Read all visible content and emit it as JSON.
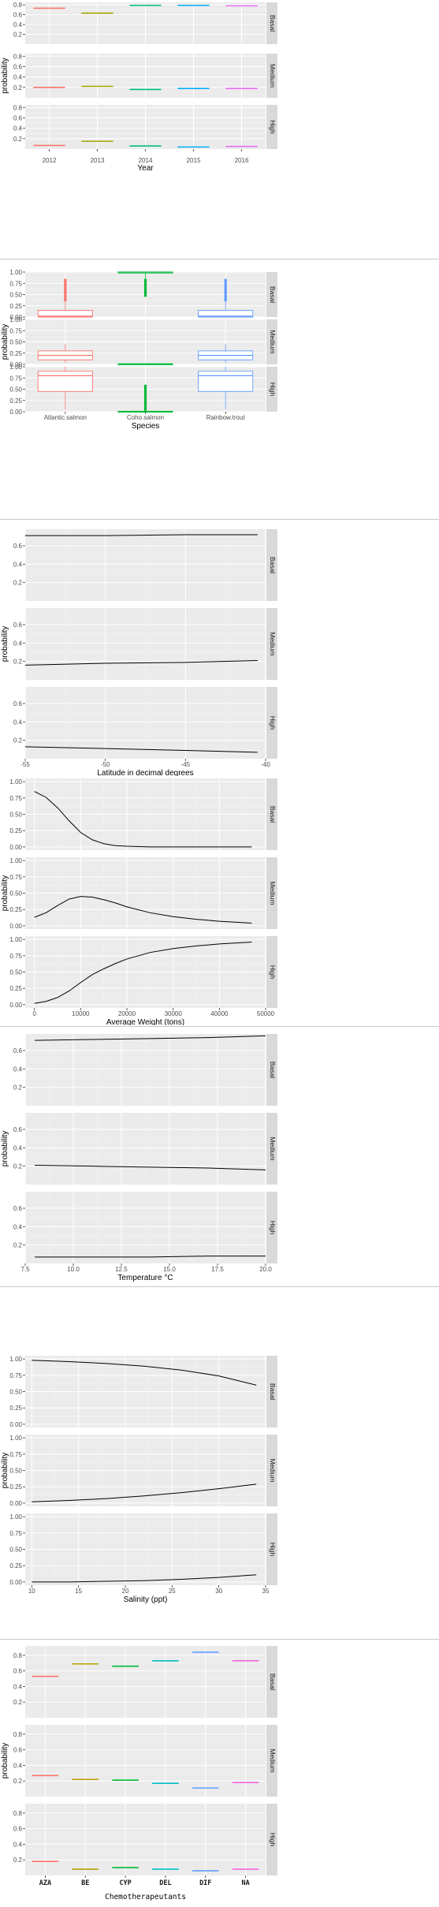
{
  "figures": [
    {
      "id": "year",
      "chart_data": {
        "type": "facet-bar",
        "xlabel": "Year",
        "ylabel": "probability",
        "categories": [
          "2012",
          "2013",
          "2014",
          "2015",
          "2016"
        ],
        "colors": [
          "#F8766D",
          "#A3A500",
          "#00BF7D",
          "#00B0F6",
          "#E76BF3"
        ],
        "facets": [
          {
            "name": "Basal",
            "values": [
              0.73,
              0.63,
              0.79,
              0.79,
              0.78
            ]
          },
          {
            "name": "Medium",
            "values": [
              0.2,
              0.22,
              0.16,
              0.18,
              0.18
            ]
          },
          {
            "name": "High",
            "values": [
              0.07,
              0.15,
              0.06,
              0.04,
              0.05
            ]
          }
        ],
        "ylim": [
          0,
          0.85
        ],
        "yticks": [
          0.2,
          0.4,
          0.6,
          0.8
        ],
        "grid": true
      }
    },
    {
      "id": "species",
      "chart_data": {
        "type": "facet-box",
        "xlabel": "Species",
        "ylabel": "probability",
        "categories": [
          "Atlantic.salmon",
          "Coho.salmon",
          "Rainbow.trout"
        ],
        "colors": [
          "#F8766D",
          "#00BA38",
          "#619CFF"
        ],
        "facets": [
          {
            "name": "Basal",
            "boxes": [
              {
                "min": 0.0,
                "q1": 0.0,
                "median": 0.02,
                "q3": 0.15,
                "max": 0.35,
                "outlier_max": 0.85
              },
              {
                "min": 0.85,
                "q1": 0.99,
                "median": 1.0,
                "q3": 1.0,
                "max": 1.0,
                "outlier_min": 0.45
              },
              {
                "min": 0.0,
                "q1": 0.0,
                "median": 0.02,
                "q3": 0.15,
                "max": 0.35,
                "outlier_max": 0.85
              }
            ]
          },
          {
            "name": "Medium",
            "boxes": [
              {
                "min": 0.03,
                "q1": 0.1,
                "median": 0.2,
                "q3": 0.3,
                "max": 0.45
              },
              {
                "min": 0.0,
                "q1": 0.0,
                "median": 0.01,
                "q3": 0.01,
                "max": 0.02
              },
              {
                "min": 0.03,
                "q1": 0.1,
                "median": 0.2,
                "q3": 0.3,
                "max": 0.45
              }
            ]
          },
          {
            "name": "High",
            "boxes": [
              {
                "min": 0.05,
                "q1": 0.45,
                "median": 0.8,
                "q3": 0.9,
                "max": 1.0
              },
              {
                "min": 0.0,
                "q1": 0.0,
                "median": 0.0,
                "q3": 0.01,
                "max": 0.02,
                "outlier_max": 0.6
              },
              {
                "min": 0.05,
                "q1": 0.45,
                "median": 0.8,
                "q3": 0.9,
                "max": 1.0
              }
            ]
          }
        ],
        "ylim": [
          0,
          1.0
        ],
        "yticks": [
          0.0,
          0.25,
          0.5,
          0.75,
          1.0
        ],
        "grid": true
      }
    },
    {
      "id": "latitude",
      "chart_data": {
        "type": "facet-line",
        "xlabel": "Latitude in decimal degrees",
        "ylabel": "probability",
        "xlim": [
          -55,
          -40
        ],
        "xticks": [
          -55,
          -50,
          -45,
          -40
        ],
        "facets": [
          {
            "name": "Basal",
            "x": [
              -55,
              -50,
              -45,
              -40.5
            ],
            "y": [
              0.71,
              0.71,
              0.72,
              0.72
            ]
          },
          {
            "name": "Medium",
            "x": [
              -55,
              -50,
              -45,
              -40.5
            ],
            "y": [
              0.16,
              0.18,
              0.19,
              0.21
            ]
          },
          {
            "name": "High",
            "x": [
              -55,
              -50,
              -45,
              -40.5
            ],
            "y": [
              0.13,
              0.11,
              0.09,
              0.07
            ]
          }
        ],
        "ylim": [
          0,
          0.78
        ],
        "yticks": [
          0.2,
          0.4,
          0.6
        ],
        "grid": true
      }
    },
    {
      "id": "weight",
      "chart_data": {
        "type": "facet-line",
        "xlabel": "Average Weight (tons)",
        "ylabel": "probability",
        "xlim": [
          -2000,
          50000
        ],
        "xticks": [
          0,
          10000,
          20000,
          30000,
          40000,
          50000
        ],
        "facets": [
          {
            "name": "Basal",
            "x": [
              0,
              2500,
              5000,
              7500,
              10000,
              12500,
              15000,
              17500,
              20000,
              25000,
              30000,
              35000,
              40000,
              47000
            ],
            "y": [
              0.85,
              0.76,
              0.6,
              0.4,
              0.22,
              0.11,
              0.05,
              0.02,
              0.01,
              0.0,
              0.0,
              0.0,
              0.0,
              0.0
            ]
          },
          {
            "name": "Medium",
            "x": [
              0,
              2500,
              5000,
              7500,
              10000,
              12500,
              15000,
              17500,
              20000,
              25000,
              30000,
              35000,
              40000,
              47000
            ],
            "y": [
              0.13,
              0.2,
              0.31,
              0.41,
              0.45,
              0.44,
              0.4,
              0.35,
              0.29,
              0.2,
              0.14,
              0.1,
              0.07,
              0.04
            ]
          },
          {
            "name": "High",
            "x": [
              0,
              2500,
              5000,
              7500,
              10000,
              12500,
              15000,
              17500,
              20000,
              25000,
              30000,
              35000,
              40000,
              47000
            ],
            "y": [
              0.02,
              0.05,
              0.11,
              0.21,
              0.34,
              0.46,
              0.55,
              0.63,
              0.7,
              0.8,
              0.86,
              0.9,
              0.93,
              0.96
            ]
          }
        ],
        "ylim": [
          -0.05,
          1.05
        ],
        "yticks": [
          0.0,
          0.25,
          0.5,
          0.75,
          1.0
        ],
        "grid": true
      }
    },
    {
      "id": "temperature",
      "chart_data": {
        "type": "facet-line",
        "xlabel": "Temperature °C",
        "ylabel": "probability",
        "xlim": [
          7.5,
          20.0
        ],
        "xticks": [
          7.5,
          10.0,
          12.5,
          15.0,
          17.5,
          20.0
        ],
        "facets": [
          {
            "name": "Basal",
            "x": [
              8,
              11,
              14,
              17,
              20
            ],
            "y": [
              0.71,
              0.72,
              0.73,
              0.74,
              0.76
            ]
          },
          {
            "name": "Medium",
            "x": [
              8,
              11,
              14,
              17,
              20
            ],
            "y": [
              0.21,
              0.2,
              0.19,
              0.18,
              0.16
            ]
          },
          {
            "name": "High",
            "x": [
              8,
              11,
              14,
              17,
              20
            ],
            "y": [
              0.07,
              0.07,
              0.07,
              0.08,
              0.08
            ]
          }
        ],
        "ylim": [
          0,
          0.78
        ],
        "yticks": [
          0.2,
          0.4,
          0.6
        ],
        "grid": true
      }
    },
    {
      "id": "salinity",
      "chart_data": {
        "type": "facet-line",
        "xlabel": "Salinity (ppt)",
        "ylabel": "probability",
        "xlim": [
          9.3,
          35
        ],
        "xticks": [
          10,
          15,
          20,
          25,
          30,
          35
        ],
        "facets": [
          {
            "name": "Basal",
            "x": [
              10,
              14,
              18,
              22,
              26,
              30,
              34
            ],
            "y": [
              0.98,
              0.96,
              0.93,
              0.89,
              0.83,
              0.74,
              0.6
            ]
          },
          {
            "name": "Medium",
            "x": [
              10,
              14,
              18,
              22,
              26,
              30,
              34
            ],
            "y": [
              0.02,
              0.04,
              0.07,
              0.11,
              0.16,
              0.22,
              0.29
            ]
          },
          {
            "name": "High",
            "x": [
              10,
              14,
              18,
              22,
              26,
              30,
              34
            ],
            "y": [
              0.0,
              0.0,
              0.01,
              0.02,
              0.04,
              0.07,
              0.11
            ]
          }
        ],
        "ylim": [
          -0.05,
          1.05
        ],
        "yticks": [
          0.0,
          0.25,
          0.5,
          0.75,
          1.0
        ],
        "grid": true
      }
    },
    {
      "id": "chemo",
      "chart_data": {
        "type": "facet-bar",
        "xlabel": "Chemotherapeutants",
        "ylabel": "probability",
        "categories": [
          "AZA",
          "BE",
          "CYP",
          "DEL",
          "DIF",
          "NA"
        ],
        "colors": [
          "#F8766D",
          "#B79F00",
          "#00BA38",
          "#00BFC4",
          "#619CFF",
          "#F564E3"
        ],
        "facets": [
          {
            "name": "Basal",
            "values": [
              0.53,
              0.69,
              0.66,
              0.73,
              0.84,
              0.73
            ]
          },
          {
            "name": "Medium",
            "values": [
              0.27,
              0.22,
              0.21,
              0.17,
              0.11,
              0.18
            ]
          },
          {
            "name": "High",
            "values": [
              0.18,
              0.08,
              0.1,
              0.08,
              0.06,
              0.08
            ]
          }
        ],
        "ylim": [
          0,
          0.92
        ],
        "yticks": [
          0.2,
          0.4,
          0.6,
          0.8
        ],
        "grid": true
      }
    }
  ]
}
